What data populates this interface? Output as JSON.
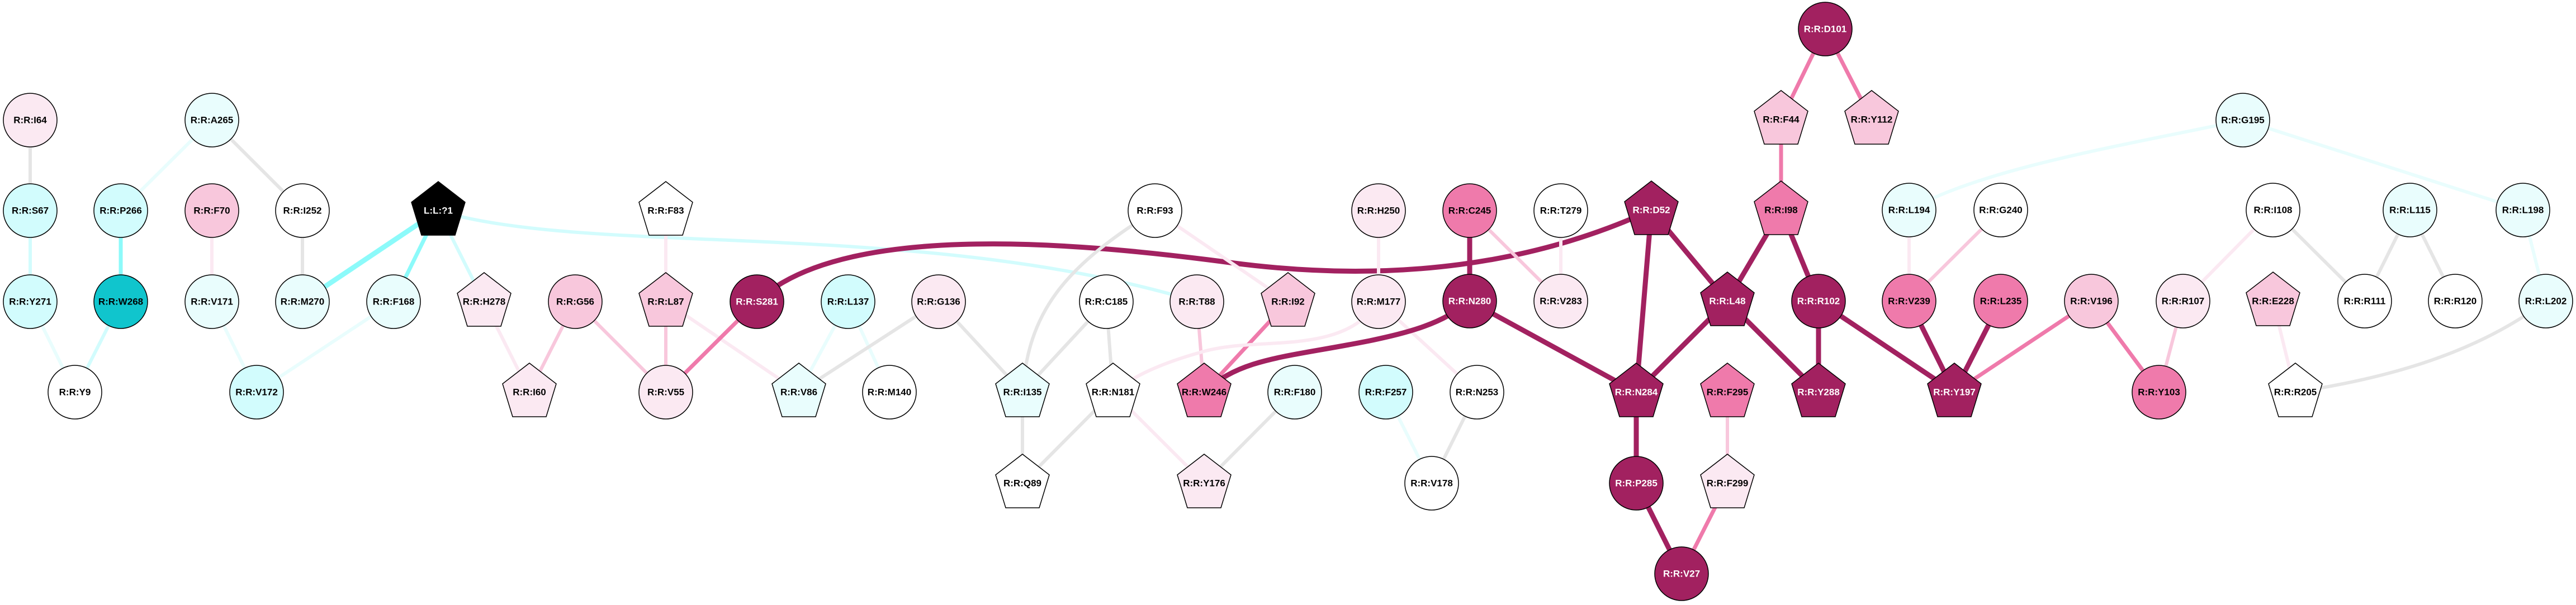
{
  "palette": {
    "dark": "#a22160",
    "mid": "#ef7aab",
    "light": "#f8c7dc",
    "vlight": "#fbe9f2",
    "white": "#ffffff",
    "vlcyan": "#e9fdfd",
    "lcyan": "#d2fcfd",
    "cyan": "#10c5cd",
    "black": "#000000",
    "grey": "#e5e5e5",
    "cyanEdge": "#8cfafa"
  },
  "nodes": [
    {
      "label": "R:R:I64",
      "shape": "circle",
      "fill": "vlight"
    },
    {
      "label": "R:R:S67",
      "shape": "circle",
      "fill": "lcyan"
    },
    {
      "label": "R:R:Y271",
      "shape": "circle",
      "fill": "lcyan"
    },
    {
      "label": "R:R:Y9",
      "shape": "circle",
      "fill": "white"
    },
    {
      "label": "R:R:A265",
      "shape": "circle",
      "fill": "vlcyan"
    },
    {
      "label": "R:R:P266",
      "shape": "circle",
      "fill": "lcyan"
    },
    {
      "label": "R:R:W268",
      "shape": "circle",
      "fill": "cyan"
    },
    {
      "label": "R:R:F70",
      "shape": "circle",
      "fill": "light"
    },
    {
      "label": "R:R:V171",
      "shape": "circle",
      "fill": "vlcyan"
    },
    {
      "label": "R:R:V172",
      "shape": "circle",
      "fill": "lcyan"
    },
    {
      "label": "R:R:I252",
      "shape": "circle",
      "fill": "white"
    },
    {
      "label": "R:R:M270",
      "shape": "circle",
      "fill": "vlcyan"
    },
    {
      "label": "L:L:?1",
      "shape": "pentagon",
      "fill": "black"
    },
    {
      "label": "R:R:F168",
      "shape": "circle",
      "fill": "vlcyan"
    },
    {
      "label": "R:R:H278",
      "shape": "pentagon",
      "fill": "vlight"
    },
    {
      "label": "R:R:I60",
      "shape": "pentagon",
      "fill": "vlight"
    },
    {
      "label": "R:R:G56",
      "shape": "circle",
      "fill": "light"
    },
    {
      "label": "R:R:F83",
      "shape": "pentagon",
      "fill": "white"
    },
    {
      "label": "R:R:L87",
      "shape": "pentagon",
      "fill": "light"
    },
    {
      "label": "R:R:V55",
      "shape": "circle",
      "fill": "vlight"
    },
    {
      "label": "R:R:S281",
      "shape": "circle",
      "fill": "dark"
    },
    {
      "label": "R:R:L137",
      "shape": "circle",
      "fill": "lcyan"
    },
    {
      "label": "R:R:G136",
      "shape": "circle",
      "fill": "vlight"
    },
    {
      "label": "R:R:V86",
      "shape": "pentagon",
      "fill": "vlcyan"
    },
    {
      "label": "R:R:M140",
      "shape": "circle",
      "fill": "white"
    },
    {
      "label": "R:R:F93",
      "shape": "circle",
      "fill": "white"
    },
    {
      "label": "R:R:C185",
      "shape": "circle",
      "fill": "white"
    },
    {
      "label": "R:R:T88",
      "shape": "circle",
      "fill": "vlight"
    },
    {
      "label": "R:R:I92",
      "shape": "pentagon",
      "fill": "light"
    },
    {
      "label": "R:R:H250",
      "shape": "circle",
      "fill": "vlight"
    },
    {
      "label": "R:R:M177",
      "shape": "circle",
      "fill": "vlight"
    },
    {
      "label": "R:R:I135",
      "shape": "pentagon",
      "fill": "vlcyan"
    },
    {
      "label": "R:R:N181",
      "shape": "pentagon",
      "fill": "white"
    },
    {
      "label": "R:R:W246",
      "shape": "pentagon",
      "fill": "mid"
    },
    {
      "label": "R:R:F180",
      "shape": "circle",
      "fill": "vlcyan"
    },
    {
      "label": "R:R:F257",
      "shape": "circle",
      "fill": "lcyan"
    },
    {
      "label": "R:R:Q89",
      "shape": "pentagon",
      "fill": "white"
    },
    {
      "label": "R:R:Y176",
      "shape": "pentagon",
      "fill": "vlight"
    },
    {
      "label": "R:R:V178",
      "shape": "circle",
      "fill": "white"
    },
    {
      "label": "R:R:C245",
      "shape": "circle",
      "fill": "mid"
    },
    {
      "label": "R:R:T279",
      "shape": "circle",
      "fill": "white"
    },
    {
      "label": "R:R:N280",
      "shape": "circle",
      "fill": "dark"
    },
    {
      "label": "R:R:V283",
      "shape": "circle",
      "fill": "vlight"
    },
    {
      "label": "R:R:N253",
      "shape": "circle",
      "fill": "white"
    },
    {
      "label": "R:R:D52",
      "shape": "pentagon",
      "fill": "dark"
    },
    {
      "label": "R:R:D101",
      "shape": "circle",
      "fill": "dark"
    },
    {
      "label": "R:R:F44",
      "shape": "pentagon",
      "fill": "light"
    },
    {
      "label": "R:R:Y112",
      "shape": "pentagon",
      "fill": "light"
    },
    {
      "label": "R:R:I98",
      "shape": "pentagon",
      "fill": "mid"
    },
    {
      "label": "R:R:L48",
      "shape": "pentagon",
      "fill": "dark"
    },
    {
      "label": "R:R:R102",
      "shape": "circle",
      "fill": "dark"
    },
    {
      "label": "R:R:N284",
      "shape": "pentagon",
      "fill": "dark"
    },
    {
      "label": "R:R:F295",
      "shape": "pentagon",
      "fill": "mid"
    },
    {
      "label": "R:R:Y288",
      "shape": "pentagon",
      "fill": "dark"
    },
    {
      "label": "R:R:P285",
      "shape": "circle",
      "fill": "dark"
    },
    {
      "label": "R:R:F299",
      "shape": "pentagon",
      "fill": "vlight"
    },
    {
      "label": "R:R:V27",
      "shape": "circle",
      "fill": "dark"
    },
    {
      "label": "R:R:G195",
      "shape": "circle",
      "fill": "vlcyan"
    },
    {
      "label": "R:R:L194",
      "shape": "circle",
      "fill": "vlcyan"
    },
    {
      "label": "R:R:G240",
      "shape": "circle",
      "fill": "white"
    },
    {
      "label": "R:R:I108",
      "shape": "circle",
      "fill": "white"
    },
    {
      "label": "R:R:L115",
      "shape": "circle",
      "fill": "vlcyan"
    },
    {
      "label": "R:R:L198",
      "shape": "circle",
      "fill": "vlcyan"
    },
    {
      "label": "R:R:V239",
      "shape": "circle",
      "fill": "mid"
    },
    {
      "label": "R:R:L235",
      "shape": "circle",
      "fill": "mid"
    },
    {
      "label": "R:R:V196",
      "shape": "circle",
      "fill": "light"
    },
    {
      "label": "R:R:R107",
      "shape": "circle",
      "fill": "vlight"
    },
    {
      "label": "R:R:E228",
      "shape": "pentagon",
      "fill": "light"
    },
    {
      "label": "R:R:R111",
      "shape": "circle",
      "fill": "white"
    },
    {
      "label": "R:R:R120",
      "shape": "circle",
      "fill": "white"
    },
    {
      "label": "R:R:L202",
      "shape": "circle",
      "fill": "vlcyan"
    },
    {
      "label": "R:R:Y197",
      "shape": "pentagon",
      "fill": "dark"
    },
    {
      "label": "R:R:Y103",
      "shape": "circle",
      "fill": "mid"
    },
    {
      "label": "R:R:R205",
      "shape": "pentagon",
      "fill": "white"
    }
  ],
  "edges": [
    {
      "s": "R:R:I64",
      "t": "R:R:S67",
      "color": "grey"
    },
    {
      "s": "R:R:S67",
      "t": "R:R:Y271",
      "color": "lcyan"
    },
    {
      "s": "R:R:Y271",
      "t": "R:R:Y9",
      "color": "vlcyan"
    },
    {
      "s": "R:R:A265",
      "t": "R:R:P266",
      "color": "vlcyan"
    },
    {
      "s": "R:R:A265",
      "t": "R:R:I252",
      "color": "grey"
    },
    {
      "s": "R:R:P266",
      "t": "R:R:W268",
      "color": "cyanEdge"
    },
    {
      "s": "R:R:W268",
      "t": "R:R:Y9",
      "color": "lcyan"
    },
    {
      "s": "R:R:F70",
      "t": "R:R:V171",
      "color": "vlight"
    },
    {
      "s": "R:R:V171",
      "t": "R:R:V172",
      "color": "vlcyan"
    },
    {
      "s": "R:R:I252",
      "t": "R:R:M270",
      "color": "grey"
    },
    {
      "s": "L:L:?1",
      "t": "R:R:M270",
      "color": "cyanEdge"
    },
    {
      "s": "L:L:?1",
      "t": "R:R:F168",
      "color": "cyanEdge"
    },
    {
      "s": "L:L:?1",
      "t": "R:R:H278",
      "color": "lcyan"
    },
    {
      "s": "L:L:?1",
      "t": "R:R:T88",
      "color": "lcyan"
    },
    {
      "s": "R:R:F168",
      "t": "R:R:V172",
      "color": "vlcyan"
    },
    {
      "s": "R:R:H278",
      "t": "R:R:I60",
      "color": "vlight"
    },
    {
      "s": "R:R:G56",
      "t": "R:R:I60",
      "color": "light"
    },
    {
      "s": "R:R:G56",
      "t": "R:R:V55",
      "color": "light"
    },
    {
      "s": "R:R:L87",
      "t": "R:R:V55",
      "color": "light"
    },
    {
      "s": "R:R:L87",
      "t": "R:R:V86",
      "color": "vlight"
    },
    {
      "s": "R:R:F83",
      "t": "R:R:L87",
      "color": "vlight"
    },
    {
      "s": "R:R:S281",
      "t": "R:R:V55",
      "color": "mid"
    },
    {
      "s": "R:R:S281",
      "t": "R:R:D52",
      "color": "dark"
    },
    {
      "s": "R:R:L137",
      "t": "R:R:V86",
      "color": "vlcyan"
    },
    {
      "s": "R:R:L137",
      "t": "R:R:M140",
      "color": "vlcyan"
    },
    {
      "s": "R:R:G136",
      "t": "R:R:V86",
      "color": "grey"
    },
    {
      "s": "R:R:G136",
      "t": "R:R:I135",
      "color": "grey"
    },
    {
      "s": "R:R:F93",
      "t": "R:R:I135",
      "color": "grey"
    },
    {
      "s": "R:R:F93",
      "t": "R:R:I92",
      "color": "vlight"
    },
    {
      "s": "R:R:C185",
      "t": "R:R:I135",
      "color": "grey"
    },
    {
      "s": "R:R:C185",
      "t": "R:R:N181",
      "color": "grey"
    },
    {
      "s": "R:R:T88",
      "t": "R:R:W246",
      "color": "light"
    },
    {
      "s": "R:R:I92",
      "t": "R:R:W246",
      "color": "mid"
    },
    {
      "s": "R:R:H250",
      "t": "R:R:M177",
      "color": "vlight"
    },
    {
      "s": "R:R:M177",
      "t": "R:R:N181",
      "color": "vlight"
    },
    {
      "s": "R:R:M177",
      "t": "R:R:N253",
      "color": "vlight"
    },
    {
      "s": "R:R:N280",
      "t": "R:R:W246",
      "color": "dark"
    },
    {
      "s": "R:R:I135",
      "t": "R:R:Q89",
      "color": "grey"
    },
    {
      "s": "R:R:N181",
      "t": "R:R:Q89",
      "color": "grey"
    },
    {
      "s": "R:R:N181",
      "t": "R:R:Y176",
      "color": "vlight"
    },
    {
      "s": "R:R:F180",
      "t": "R:R:Y176",
      "color": "grey"
    },
    {
      "s": "R:R:F257",
      "t": "R:R:V178",
      "color": "vlcyan"
    },
    {
      "s": "R:R:N253",
      "t": "R:R:V178",
      "color": "grey"
    },
    {
      "s": "R:R:C245",
      "t": "R:R:N280",
      "color": "dark"
    },
    {
      "s": "R:R:C245",
      "t": "R:R:V283",
      "color": "light"
    },
    {
      "s": "R:R:T279",
      "t": "R:R:V283",
      "color": "vlight"
    },
    {
      "s": "R:R:N280",
      "t": "R:R:N284",
      "color": "dark"
    },
    {
      "s": "R:R:D52",
      "t": "R:R:N284",
      "color": "dark"
    },
    {
      "s": "R:R:D52",
      "t": "R:R:L48",
      "color": "dark"
    },
    {
      "s": "R:R:I98",
      "t": "R:R:L48",
      "color": "dark"
    },
    {
      "s": "R:R:I98",
      "t": "R:R:R102",
      "color": "dark"
    },
    {
      "s": "R:R:F44",
      "t": "R:R:I98",
      "color": "mid"
    },
    {
      "s": "R:R:D101",
      "t": "R:R:F44",
      "color": "mid"
    },
    {
      "s": "R:R:D101",
      "t": "R:R:Y112",
      "color": "mid"
    },
    {
      "s": "R:R:L48",
      "t": "R:R:N284",
      "color": "dark"
    },
    {
      "s": "R:R:L48",
      "t": "R:R:Y288",
      "color": "dark"
    },
    {
      "s": "R:R:R102",
      "t": "R:R:Y288",
      "color": "dark"
    },
    {
      "s": "R:R:R102",
      "t": "R:R:Y197",
      "color": "dark"
    },
    {
      "s": "R:R:N284",
      "t": "R:R:P285",
      "color": "dark"
    },
    {
      "s": "R:R:P285",
      "t": "R:R:V27",
      "color": "dark"
    },
    {
      "s": "R:R:F295",
      "t": "R:R:F299",
      "color": "light"
    },
    {
      "s": "R:R:F299",
      "t": "R:R:V27",
      "color": "mid"
    },
    {
      "s": "R:R:L194",
      "t": "R:R:V239",
      "color": "vlight"
    },
    {
      "s": "R:R:G240",
      "t": "R:R:V239",
      "color": "light"
    },
    {
      "s": "R:R:G195",
      "t": "R:R:L194",
      "color": "vlcyan"
    },
    {
      "s": "R:R:G195",
      "t": "R:R:L198",
      "color": "vlcyan"
    },
    {
      "s": "R:R:V239",
      "t": "R:R:Y197",
      "color": "dark"
    },
    {
      "s": "R:R:L235",
      "t": "R:R:Y197",
      "color": "dark"
    },
    {
      "s": "R:R:V196",
      "t": "R:R:Y197",
      "color": "mid"
    },
    {
      "s": "R:R:V196",
      "t": "R:R:Y103",
      "color": "mid"
    },
    {
      "s": "R:R:R107",
      "t": "R:R:Y103",
      "color": "light"
    },
    {
      "s": "R:R:I108",
      "t": "R:R:R107",
      "color": "vlight"
    },
    {
      "s": "R:R:I108",
      "t": "R:R:R111",
      "color": "grey"
    },
    {
      "s": "R:R:L115",
      "t": "R:R:R111",
      "color": "grey"
    },
    {
      "s": "R:R:L115",
      "t": "R:R:R120",
      "color": "grey"
    },
    {
      "s": "R:R:L198",
      "t": "R:R:L202",
      "color": "vlcyan"
    },
    {
      "s": "R:R:E228",
      "t": "R:R:R205",
      "color": "vlight"
    },
    {
      "s": "R:R:L202",
      "t": "R:R:R205",
      "color": "grey"
    }
  ]
}
